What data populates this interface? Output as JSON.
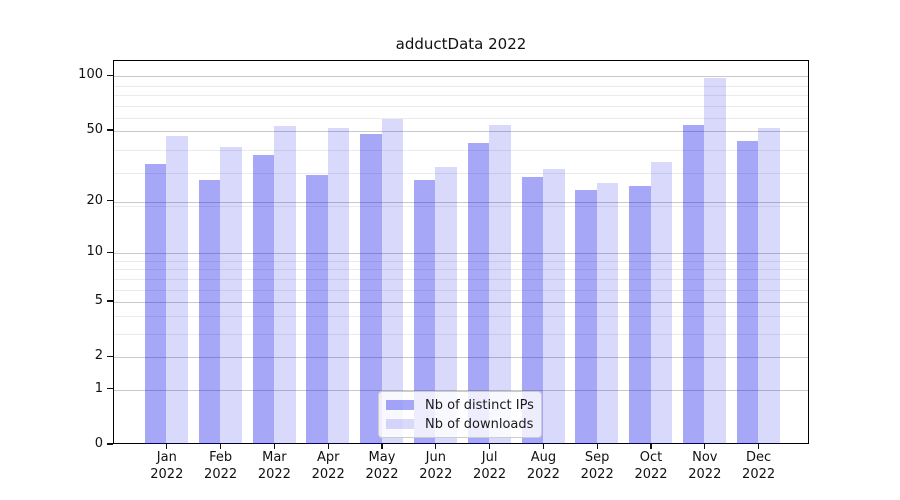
{
  "chart_data": {
    "type": "bar",
    "title": "adductData 2022",
    "categories": [
      "Jan 2022",
      "Feb 2022",
      "Mar 2022",
      "Apr 2022",
      "May 2022",
      "Jun 2022",
      "Jul 2022",
      "Aug 2022",
      "Sep 2022",
      "Oct 2022",
      "Nov 2022",
      "Dec 2022"
    ],
    "series": [
      {
        "name": "Nb of distinct IPs",
        "color": "rgba(10,10,235,0.36)",
        "values": [
          32,
          26,
          36,
          28,
          47,
          26,
          42,
          27,
          23,
          24,
          53,
          43
        ]
      },
      {
        "name": "Nb of downloads",
        "color": "rgba(10,10,235,0.155)",
        "values": [
          46,
          40,
          52,
          51,
          57,
          31,
          53,
          30,
          25,
          33,
          96,
          51
        ]
      }
    ],
    "y_axis": {
      "scale": "log10(value+1)",
      "major_ticks": [
        0,
        1,
        2,
        5,
        10,
        20,
        50,
        100
      ],
      "minor_gridline_values": [
        3,
        4,
        6,
        7,
        8,
        9,
        19,
        29,
        39,
        59,
        69,
        79,
        89
      ],
      "ylim": [
        0,
        121
      ]
    },
    "grid": true,
    "legend_position": "lower center"
  },
  "colors": {
    "bar_dark": "rgba(10,10,235,0.36)",
    "bar_light": "rgba(10,10,235,0.155)",
    "grid_major": "#c9c9c9",
    "grid_minor": "#ebebeb",
    "axis_frame": "#000000",
    "text": "#111111"
  },
  "legend": {
    "entries": [
      {
        "label": "Nb of distinct IPs"
      },
      {
        "label": "Nb of downloads"
      }
    ]
  }
}
